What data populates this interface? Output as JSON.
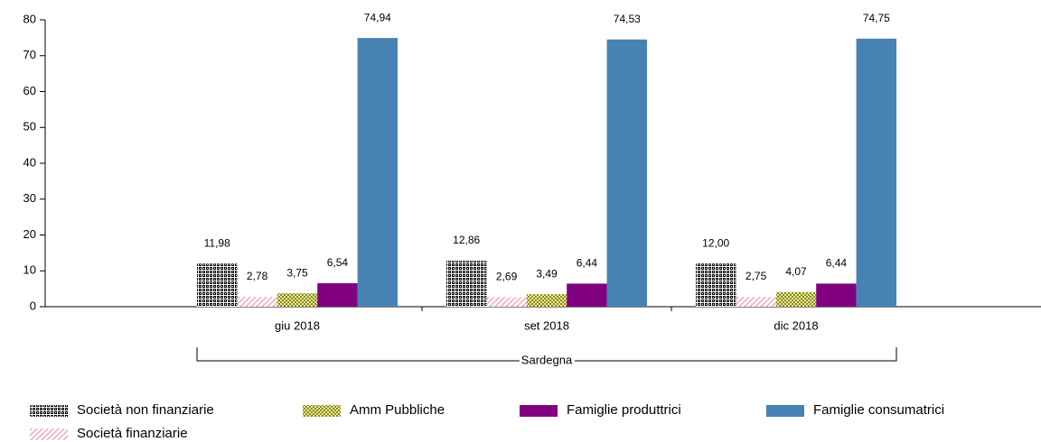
{
  "chart_data": {
    "type": "bar",
    "categories": [
      "giu 2018",
      "set 2018",
      "dic 2018"
    ],
    "group_label": "Sardegna",
    "series": [
      {
        "name": "Società non finanziarie",
        "color": "#000000",
        "pattern": "dots",
        "values": [
          11.98,
          12.86,
          12.0
        ],
        "value_labels": [
          "11,98",
          "12,86",
          "12,00"
        ]
      },
      {
        "name": "Società finanziarie",
        "color": "#f4a6b8",
        "pattern": "hatch",
        "values": [
          2.78,
          2.69,
          2.75
        ],
        "value_labels": [
          "2,78",
          "2,69",
          "2,75"
        ]
      },
      {
        "name": "Amm Pubbliche",
        "color": "#8b8b1a",
        "pattern": "checks",
        "values": [
          3.75,
          3.49,
          4.07
        ],
        "value_labels": [
          "3,75",
          "3,49",
          "4,07"
        ]
      },
      {
        "name": "Famiglie produttrici",
        "color": "#800080",
        "pattern": "solid",
        "values": [
          6.54,
          6.44,
          6.44
        ],
        "value_labels": [
          "6,54",
          "6,44",
          "6,44"
        ]
      },
      {
        "name": "Famiglie consumatrici",
        "color": "#4682b4",
        "pattern": "solid",
        "values": [
          74.94,
          74.53,
          74.75
        ],
        "value_labels": [
          "74,94",
          "74,53",
          "74,75"
        ]
      }
    ],
    "ylim": [
      0,
      80
    ],
    "yticks": [
      0,
      10,
      20,
      30,
      40,
      50,
      60,
      70,
      80
    ],
    "grid": false
  }
}
